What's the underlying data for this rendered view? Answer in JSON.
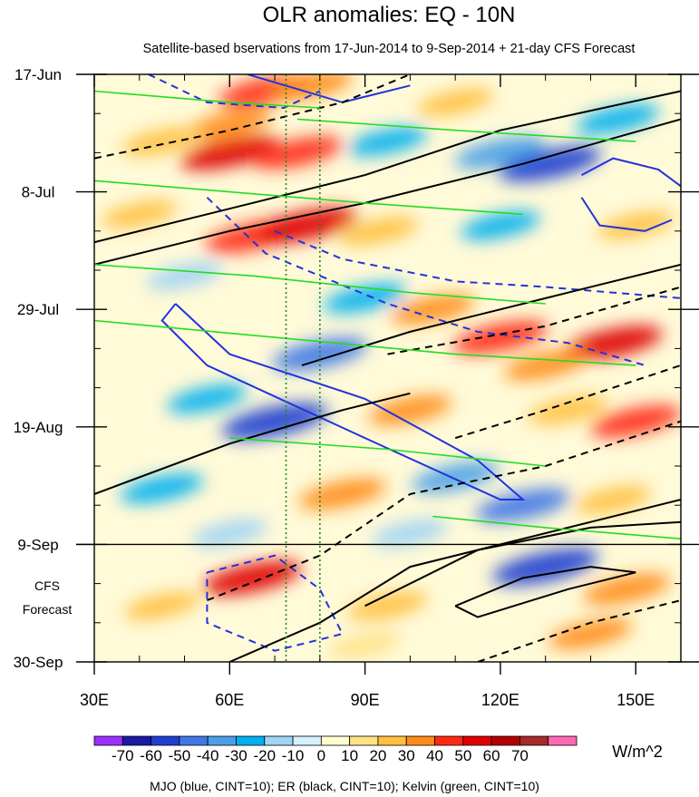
{
  "chart_data": {
    "type": "heatmap",
    "title": "OLR anomalies: EQ - 10N",
    "subtitle": "Satellite-based bservations from 17-Jun-2014 to 9-Sep-2014 + 21-day CFS Forecast",
    "xlabel": "",
    "ylabel": "",
    "x_range": [
      30,
      160
    ],
    "y_range_days": [
      0,
      105
    ],
    "x_ticks": [
      {
        "value": 30,
        "label": "30E"
      },
      {
        "value": 60,
        "label": "60E"
      },
      {
        "value": 90,
        "label": "90E"
      },
      {
        "value": 120,
        "label": "120E"
      },
      {
        "value": 150,
        "label": "150E"
      }
    ],
    "y_ticks": [
      {
        "day": 0,
        "label": "17-Jun"
      },
      {
        "day": 21,
        "label": "8-Jul"
      },
      {
        "day": 42,
        "label": "29-Jul"
      },
      {
        "day": 63,
        "label": "19-Aug"
      },
      {
        "day": 84,
        "label": "9-Sep"
      },
      {
        "day": 105,
        "label": "30-Sep"
      }
    ],
    "forecast_start_day": 84,
    "forecast_label_line1": "CFS",
    "forecast_label_line2": "Forecast",
    "reference_longitudes": [
      72.5,
      80
    ],
    "colorbar": {
      "unit": "W/m^2",
      "levels": [
        -70,
        -60,
        -50,
        -40,
        -30,
        -20,
        -10,
        0,
        10,
        20,
        30,
        40,
        50,
        60,
        70
      ],
      "labels": [
        "-70",
        "-60",
        "-50",
        "-40",
        "-30",
        "-20",
        "-10",
        "0",
        "10",
        "20",
        "30",
        "40",
        "50",
        "60",
        "70"
      ],
      "colors": [
        "#9b30ff",
        "#1a1aa6",
        "#1f3fd0",
        "#3f77e6",
        "#4a9fe8",
        "#00b0f0",
        "#9fd4f5",
        "#d6f0fb",
        "#fffdd0",
        "#ffe285",
        "#ffc040",
        "#ff8c1a",
        "#ff2a14",
        "#e00000",
        "#b30000",
        "#a52a2a",
        "#ff69b4"
      ]
    },
    "series": [
      {
        "name": "MJO",
        "color": "#2233dd",
        "cint": 10
      },
      {
        "name": "ER",
        "color": "#000000",
        "cint": 10
      },
      {
        "name": "Kelvin",
        "color": "#22dd22",
        "cint": 10
      }
    ],
    "anomaly_blobs": [
      {
        "lon": 68,
        "day": 3,
        "value": 45
      },
      {
        "lon": 78,
        "day": 2,
        "value": 30
      },
      {
        "lon": 60,
        "day": 9,
        "value": 30
      },
      {
        "lon": 45,
        "day": 12,
        "value": 25
      },
      {
        "lon": 60,
        "day": 14,
        "value": 50
      },
      {
        "lon": 75,
        "day": 14,
        "value": 40
      },
      {
        "lon": 95,
        "day": 12,
        "value": -25
      },
      {
        "lon": 120,
        "day": 14,
        "value": -40
      },
      {
        "lon": 131,
        "day": 16,
        "value": -55
      },
      {
        "lon": 146,
        "day": 8,
        "value": -30
      },
      {
        "lon": 110,
        "day": 5,
        "value": 20
      },
      {
        "lon": 40,
        "day": 25,
        "value": 20
      },
      {
        "lon": 65,
        "day": 29,
        "value": 45
      },
      {
        "lon": 77,
        "day": 27,
        "value": 55
      },
      {
        "lon": 93,
        "day": 28,
        "value": 25
      },
      {
        "lon": 50,
        "day": 36,
        "value": -20
      },
      {
        "lon": 150,
        "day": 27,
        "value": 20
      },
      {
        "lon": 120,
        "day": 27,
        "value": -25
      },
      {
        "lon": 90,
        "day": 40,
        "value": -30
      },
      {
        "lon": 80,
        "day": 50,
        "value": -45
      },
      {
        "lon": 105,
        "day": 42,
        "value": 30
      },
      {
        "lon": 120,
        "day": 47,
        "value": 45
      },
      {
        "lon": 145,
        "day": 48,
        "value": 50
      },
      {
        "lon": 130,
        "day": 52,
        "value": 30
      },
      {
        "lon": 70,
        "day": 62,
        "value": -60
      },
      {
        "lon": 55,
        "day": 58,
        "value": -25
      },
      {
        "lon": 100,
        "day": 60,
        "value": 30
      },
      {
        "lon": 135,
        "day": 60,
        "value": 25
      },
      {
        "lon": 150,
        "day": 62,
        "value": 40
      },
      {
        "lon": 45,
        "day": 74,
        "value": -30
      },
      {
        "lon": 85,
        "day": 75,
        "value": 35
      },
      {
        "lon": 110,
        "day": 72,
        "value": -35
      },
      {
        "lon": 125,
        "day": 77,
        "value": -45
      },
      {
        "lon": 145,
        "day": 76,
        "value": 20
      },
      {
        "lon": 60,
        "day": 82,
        "value": -20
      },
      {
        "lon": 100,
        "day": 82,
        "value": -20
      },
      {
        "lon": 65,
        "day": 90,
        "value": 50
      },
      {
        "lon": 45,
        "day": 95,
        "value": 20
      },
      {
        "lon": 95,
        "day": 95,
        "value": 25
      },
      {
        "lon": 130,
        "day": 88,
        "value": -60
      },
      {
        "lon": 148,
        "day": 92,
        "value": 35
      },
      {
        "lon": 140,
        "day": 100,
        "value": 30
      },
      {
        "lon": 90,
        "day": 102,
        "value": 15
      }
    ],
    "contours": [
      {
        "series": "MJO",
        "dashed": false,
        "points": [
          [
            64,
            0
          ],
          [
            85,
            5
          ],
          [
            100,
            2
          ]
        ]
      },
      {
        "series": "MJO",
        "dashed": true,
        "points": [
          [
            42,
            0
          ],
          [
            55,
            5
          ],
          [
            72,
            6
          ],
          [
            80,
            3
          ]
        ]
      },
      {
        "series": "MJO",
        "dashed": false,
        "points": [
          [
            138,
            18
          ],
          [
            145,
            15
          ],
          [
            155,
            17
          ],
          [
            160,
            20
          ]
        ]
      },
      {
        "series": "MJO",
        "dashed": false,
        "points": [
          [
            138,
            22
          ],
          [
            142,
            27
          ],
          [
            152,
            28
          ],
          [
            158,
            26
          ]
        ]
      },
      {
        "series": "MJO",
        "dashed": true,
        "points": [
          [
            55,
            22
          ],
          [
            68,
            32
          ],
          [
            95,
            41
          ],
          [
            115,
            46
          ],
          [
            135,
            48
          ],
          [
            152,
            52
          ]
        ]
      },
      {
        "series": "MJO",
        "dashed": true,
        "points": [
          [
            70,
            28
          ],
          [
            85,
            33
          ],
          [
            110,
            37
          ],
          [
            130,
            38
          ],
          [
            160,
            40
          ]
        ]
      },
      {
        "series": "MJO",
        "dashed": false,
        "points": [
          [
            48,
            41
          ],
          [
            60,
            50
          ],
          [
            90,
            58
          ],
          [
            115,
            69
          ],
          [
            125,
            76
          ],
          [
            120,
            76
          ],
          [
            90,
            65
          ],
          [
            55,
            52
          ],
          [
            45,
            44
          ],
          [
            48,
            41
          ]
        ]
      },
      {
        "series": "MJO",
        "dashed": true,
        "points": [
          [
            55,
            89
          ],
          [
            70,
            86
          ],
          [
            80,
            92
          ],
          [
            85,
            100
          ],
          [
            70,
            103
          ],
          [
            55,
            98
          ],
          [
            55,
            89
          ]
        ]
      },
      {
        "series": "ER",
        "dashed": false,
        "points": [
          [
            30,
            34
          ],
          [
            60,
            28
          ],
          [
            90,
            23
          ],
          [
            125,
            16
          ],
          [
            160,
            8
          ]
        ]
      },
      {
        "series": "ER",
        "dashed": false,
        "points": [
          [
            30,
            30
          ],
          [
            55,
            25
          ],
          [
            90,
            18
          ],
          [
            120,
            10
          ],
          [
            160,
            3
          ]
        ]
      },
      {
        "series": "ER",
        "dashed": true,
        "points": [
          [
            30,
            15
          ],
          [
            60,
            10
          ],
          [
            85,
            5
          ],
          [
            100,
            0
          ]
        ]
      },
      {
        "series": "ER",
        "dashed": false,
        "points": [
          [
            76,
            52
          ],
          [
            100,
            46
          ],
          [
            130,
            40
          ],
          [
            160,
            34
          ]
        ]
      },
      {
        "series": "ER",
        "dashed": true,
        "points": [
          [
            95,
            50
          ],
          [
            130,
            45
          ],
          [
            160,
            38
          ]
        ]
      },
      {
        "series": "ER",
        "dashed": false,
        "points": [
          [
            30,
            75
          ],
          [
            60,
            66
          ],
          [
            85,
            60
          ],
          [
            100,
            57
          ]
        ]
      },
      {
        "series": "ER",
        "dashed": true,
        "points": [
          [
            110,
            65
          ],
          [
            130,
            60
          ],
          [
            160,
            52
          ]
        ]
      },
      {
        "series": "ER",
        "dashed": true,
        "points": [
          [
            55,
            94
          ],
          [
            80,
            86
          ],
          [
            100,
            75
          ],
          [
            130,
            70
          ],
          [
            160,
            62
          ]
        ]
      },
      {
        "series": "ER",
        "dashed": false,
        "points": [
          [
            60,
            105
          ],
          [
            80,
            98
          ],
          [
            100,
            88
          ],
          [
            140,
            80
          ],
          [
            160,
            76
          ]
        ]
      },
      {
        "series": "ER",
        "dashed": false,
        "points": [
          [
            90,
            95
          ],
          [
            115,
            85
          ],
          [
            140,
            81
          ],
          [
            160,
            80
          ]
        ]
      },
      {
        "series": "ER",
        "dashed": false,
        "points": [
          [
            110,
            95
          ],
          [
            125,
            90
          ],
          [
            140,
            88
          ],
          [
            150,
            89
          ],
          [
            135,
            92
          ],
          [
            115,
            97
          ],
          [
            110,
            95
          ]
        ]
      },
      {
        "series": "ER",
        "dashed": true,
        "points": [
          [
            115,
            105
          ],
          [
            140,
            98
          ],
          [
            160,
            94
          ]
        ]
      },
      {
        "series": "Kelvin",
        "dashed": false,
        "points": [
          [
            30,
            19
          ],
          [
            60,
            21
          ],
          [
            90,
            23
          ],
          [
            125,
            25
          ]
        ]
      },
      {
        "series": "Kelvin",
        "dashed": false,
        "points": [
          [
            30,
            34
          ],
          [
            65,
            36
          ],
          [
            100,
            39
          ],
          [
            130,
            41
          ]
        ]
      },
      {
        "series": "Kelvin",
        "dashed": false,
        "points": [
          [
            30,
            44
          ],
          [
            70,
            47
          ],
          [
            110,
            50
          ],
          [
            150,
            52
          ]
        ]
      },
      {
        "series": "Kelvin",
        "dashed": false,
        "points": [
          [
            60,
            65
          ],
          [
            95,
            67
          ],
          [
            130,
            70
          ]
        ]
      },
      {
        "series": "Kelvin",
        "dashed": false,
        "points": [
          [
            75,
            8
          ],
          [
            110,
            10
          ],
          [
            150,
            12
          ]
        ]
      },
      {
        "series": "Kelvin",
        "dashed": false,
        "points": [
          [
            30,
            3
          ],
          [
            60,
            5
          ],
          [
            80,
            6
          ]
        ]
      },
      {
        "series": "Kelvin",
        "dashed": false,
        "points": [
          [
            105,
            79
          ],
          [
            130,
            81
          ],
          [
            160,
            83
          ]
        ]
      }
    ]
  },
  "footer": {
    "caption": "MJO (blue, CINT=10); ER (black, CINT=10); Kelvin (green, CINT=10)"
  }
}
